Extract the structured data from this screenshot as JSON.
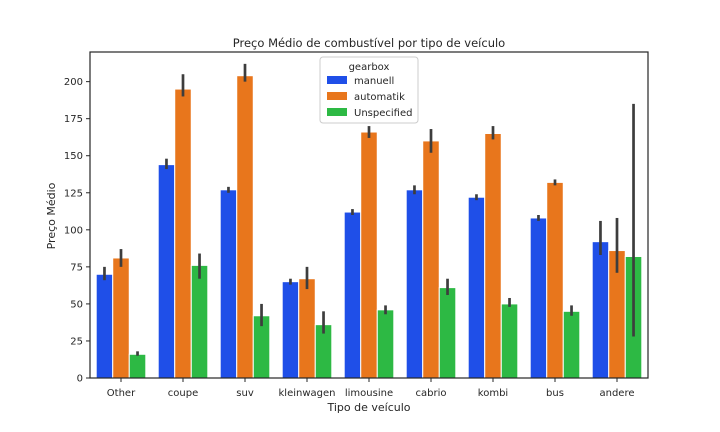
{
  "chart_data": {
    "type": "bar",
    "title": "Preço Médio de combustível por tipo de veículo",
    "xlabel": "Tipo de veículo",
    "ylabel": "Preço Médio",
    "ylim": [
      0,
      220
    ],
    "yticks": [
      0,
      25,
      50,
      75,
      100,
      125,
      150,
      175,
      200
    ],
    "grid": false,
    "legend": {
      "title": "gearbox",
      "position": "top-center"
    },
    "categories": [
      "Other",
      "coupe",
      "suv",
      "kleinwagen",
      "limousine",
      "cabrio",
      "kombi",
      "bus",
      "andere"
    ],
    "series": [
      {
        "name": "manuell",
        "color": "#1f4fe8",
        "values": [
          70,
          144,
          127,
          65,
          112,
          127,
          122,
          108,
          92
        ],
        "err_low": [
          66,
          141,
          125,
          63,
          110,
          124,
          120,
          106,
          83
        ],
        "err_high": [
          75,
          148,
          129,
          67,
          114,
          130,
          124,
          110,
          106
        ]
      },
      {
        "name": "automatik",
        "color": "#e8761c",
        "values": [
          81,
          195,
          204,
          67,
          166,
          160,
          165,
          132,
          86
        ],
        "err_low": [
          75,
          190,
          200,
          60,
          162,
          152,
          161,
          130,
          71
        ],
        "err_high": [
          87,
          205,
          212,
          75,
          170,
          168,
          170,
          134,
          108
        ]
      },
      {
        "name": "Unspecified",
        "color": "#2db944",
        "values": [
          16,
          76,
          42,
          36,
          46,
          61,
          50,
          45,
          82
        ],
        "err_low": [
          15,
          67,
          35,
          30,
          43,
          56,
          48,
          42,
          28
        ],
        "err_high": [
          18,
          84,
          50,
          45,
          49,
          67,
          54,
          49,
          185
        ]
      }
    ]
  }
}
